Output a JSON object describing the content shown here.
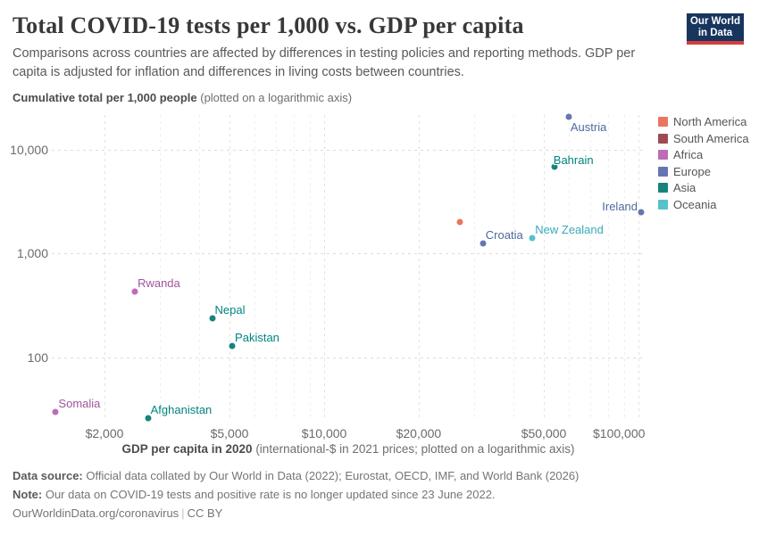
{
  "header": {
    "title": "Total COVID-19 tests per 1,000 vs. GDP per capita",
    "subtitle": "Comparisons across countries are affected by differences in testing policies and reporting methods. GDP per capita is adjusted for inflation and differences in living costs between countries.",
    "logo": {
      "line1": "Our World",
      "line2": "in Data",
      "bg_color": "#18355E",
      "bar_color": "#D73C3C"
    }
  },
  "chart_data": {
    "type": "scatter",
    "x_axis": {
      "label_bold": "GDP per capita in 2020",
      "label_note": " (international-$ in 2021 prices; plotted on a logarithmic axis)",
      "scale": "log",
      "min": 1360,
      "max": 104700,
      "ticks": [
        {
          "value": 2000,
          "label": "$2,000"
        },
        {
          "value": 5000,
          "label": "$5,000"
        },
        {
          "value": 10000,
          "label": "$10,000"
        },
        {
          "value": 20000,
          "label": "$20,000"
        },
        {
          "value": 50000,
          "label": "$50,000"
        },
        {
          "value": 100000,
          "label": "$100,000"
        }
      ]
    },
    "y_axis": {
      "label_bold": "Cumulative total per 1,000 people",
      "label_note": " (plotted on a logarithmic axis)",
      "scale": "log",
      "min": 24,
      "max": 23400,
      "ticks": [
        {
          "value": 100,
          "label": "100"
        },
        {
          "value": 1000,
          "label": "1,000"
        },
        {
          "value": 10000,
          "label": "10,000"
        }
      ]
    },
    "legend": {
      "position": "right",
      "entries": [
        {
          "name": "North America",
          "color": "#E8765F",
          "label_color": "#E56E5A"
        },
        {
          "name": "South America",
          "color": "#9D4B53",
          "label_color": "#883039"
        },
        {
          "name": "Africa",
          "color": "#BC6CB8",
          "label_color": "#A2559C"
        },
        {
          "name": "Europe",
          "color": "#6577B2",
          "label_color": "#4C6A9C"
        },
        {
          "name": "Asia",
          "color": "#17847C",
          "label_color": "#00847E"
        },
        {
          "name": "Oceania",
          "color": "#56C2CC",
          "label_color": "#38AABA"
        }
      ]
    },
    "points": [
      {
        "country": "Austria",
        "continent": "Europe",
        "gdp": 60000,
        "tests": 21000,
        "label_pos": "below-right"
      },
      {
        "country": "Bahrain",
        "continent": "Asia",
        "gdp": 54000,
        "tests": 6900,
        "label_pos": "above"
      },
      {
        "country": "Ireland",
        "continent": "Europe",
        "gdp": 102000,
        "tests": 2500,
        "label_pos": "above-left"
      },
      {
        "country": "",
        "continent": "North America",
        "gdp": 27000,
        "tests": 2000,
        "label_pos": null
      },
      {
        "country": "New Zealand",
        "continent": "Oceania",
        "gdp": 46000,
        "tests": 1400,
        "label_pos": "above-right"
      },
      {
        "country": "Croatia",
        "continent": "Europe",
        "gdp": 32000,
        "tests": 1250,
        "label_pos": "above-right"
      },
      {
        "country": "Rwanda",
        "continent": "Africa",
        "gdp": 2500,
        "tests": 430,
        "label_pos": "above-right"
      },
      {
        "country": "Nepal",
        "continent": "Asia",
        "gdp": 4400,
        "tests": 240,
        "label_pos": "above-right"
      },
      {
        "country": "Pakistan",
        "continent": "Asia",
        "gdp": 5100,
        "tests": 130,
        "label_pos": "above-right"
      },
      {
        "country": "Somalia",
        "continent": "Africa",
        "gdp": 1400,
        "tests": 30,
        "label_pos": "above-right"
      },
      {
        "country": "Afghanistan",
        "continent": "Asia",
        "gdp": 2750,
        "tests": 26,
        "label_pos": "above-right"
      }
    ],
    "grid": true
  },
  "footer": {
    "source_label": "Data source:",
    "source_text": " Official data collated by Our World in Data (2022); Eurostat, OECD, IMF, and World Bank (2026)",
    "note_label": "Note:",
    "note_text": " Our data on COVID-19 tests and positive rate is no longer updated since 23 June 2022.",
    "link": "OurWorldinData.org/coronavirus",
    "separator": "|",
    "license": "CC BY"
  }
}
